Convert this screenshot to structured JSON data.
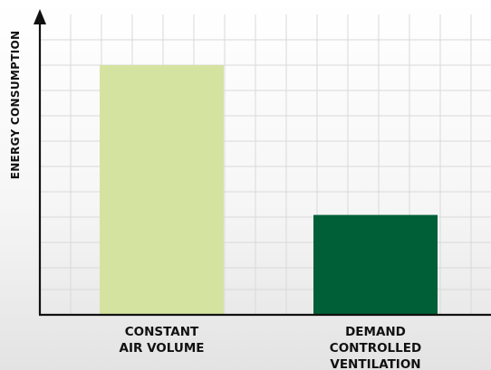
{
  "chart_data": {
    "type": "bar",
    "categories": [
      "CONSTANT\nAIR VOLUME",
      "DEMAND\nCONTROLLED\nVENTILATION"
    ],
    "values": [
      100,
      40
    ],
    "ylabel": "ENERGY CONSUMPTION",
    "xlabel": "",
    "ylim": [
      0,
      100
    ],
    "grid": true,
    "colors": [
      "#d5e3a1",
      "#005f37"
    ],
    "grid_color": "#d9d9d9",
    "axis_color": "#111111"
  }
}
